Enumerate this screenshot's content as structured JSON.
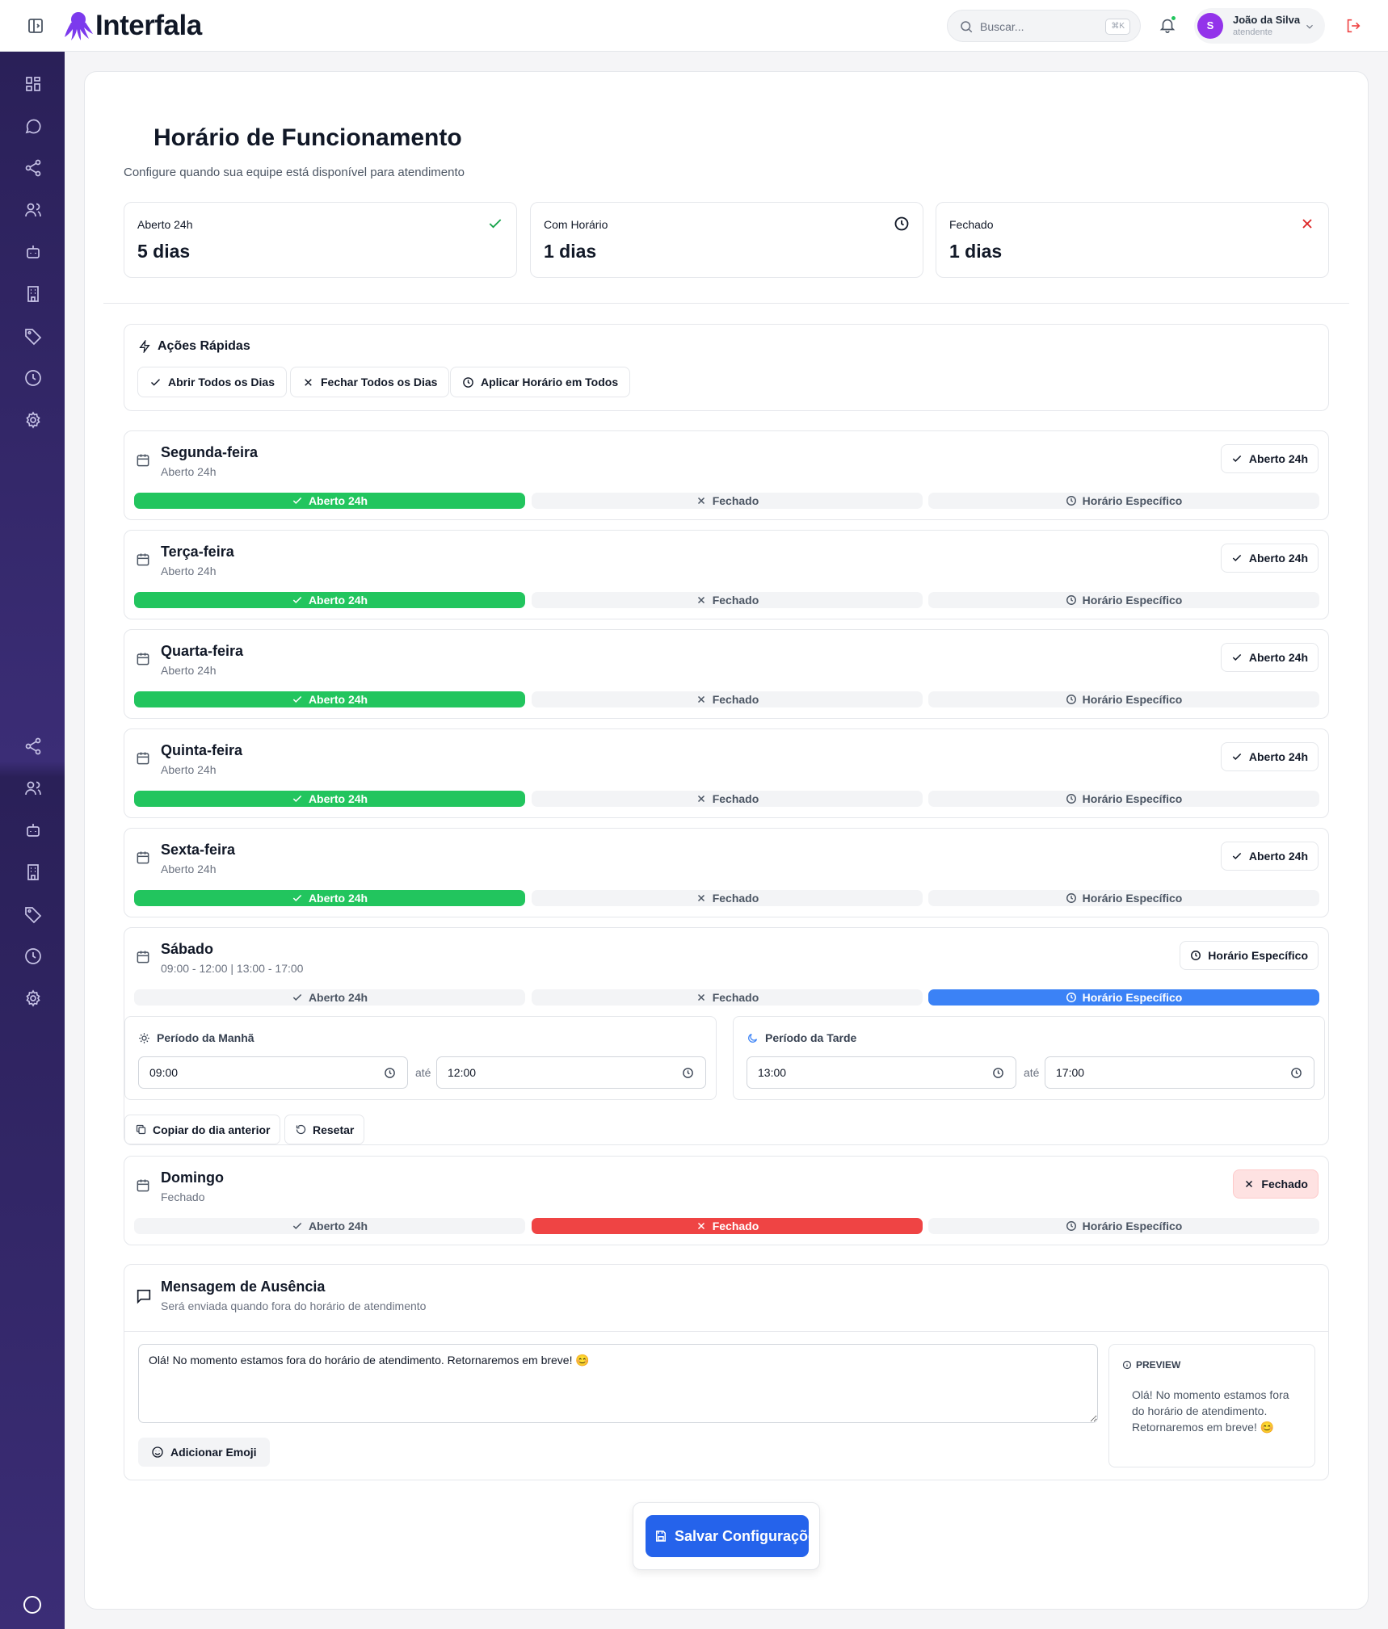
{
  "app": {
    "name": "Interfala"
  },
  "header": {
    "search_placeholder": "Buscar...",
    "search_shortcut": "⌘K",
    "user_initial": "S",
    "user_name": "João da Silva",
    "user_role": "atendente"
  },
  "colors": {
    "brand": "#7c3aed",
    "sidebar": "#2f2563",
    "green": "#22c55e",
    "red": "#ef4444",
    "blue": "#3b82f6",
    "save": "#2563eb"
  },
  "sidebar": {
    "icons": [
      "dashboard-icon",
      "chat-icon",
      "share-icon",
      "users-icon",
      "bot-icon",
      "building-icon",
      "tag-icon",
      "clock-icon",
      "settings-icon",
      "share-icon",
      "users-icon",
      "bot-icon",
      "building-icon",
      "tag-icon",
      "clock-icon",
      "settings-icon"
    ]
  },
  "page": {
    "title": "Horário de Funcionamento",
    "subtitle": "Configure quando sua equipe está disponível para atendimento"
  },
  "stats": [
    {
      "label": "Aberto 24h",
      "value": "5 dias",
      "icon": "check-icon"
    },
    {
      "label": "Com Horário",
      "value": "1 dias",
      "icon": "clock-icon"
    },
    {
      "label": "Fechado",
      "value": "1 dias",
      "icon": "x-icon"
    }
  ],
  "quick_actions": {
    "title": "Ações Rápidas",
    "buttons": [
      "Abrir Todos os Dias",
      "Fechar Todos os Dias",
      "Aplicar Horário em Todos"
    ]
  },
  "options": {
    "open": "Aberto 24h",
    "closed": "Fechado",
    "specific": "Horário Específico"
  },
  "days": [
    {
      "name": "Segunda-feira",
      "status": "Aberto 24h",
      "badge": "Aberto 24h",
      "mode": "open"
    },
    {
      "name": "Terça-feira",
      "status": "Aberto 24h",
      "badge": "Aberto 24h",
      "mode": "open"
    },
    {
      "name": "Quarta-feira",
      "status": "Aberto 24h",
      "badge": "Aberto 24h",
      "mode": "open"
    },
    {
      "name": "Quinta-feira",
      "status": "Aberto 24h",
      "badge": "Aberto 24h",
      "mode": "open"
    },
    {
      "name": "Sexta-feira",
      "status": "Aberto 24h",
      "badge": "Aberto 24h",
      "mode": "open"
    },
    {
      "name": "Sábado",
      "status": "09:00 - 12:00 | 13:00 - 17:00",
      "badge": "Horário Específico",
      "mode": "specific"
    },
    {
      "name": "Domingo",
      "status": "Fechado",
      "badge": "Fechado",
      "mode": "closed"
    }
  ],
  "saturday": {
    "morning": {
      "title": "Período da Manhã",
      "start": "09:00",
      "end": "12:00"
    },
    "afternoon": {
      "title": "Período da Tarde",
      "start": "13:00",
      "end": "17:00"
    },
    "until_label": "até",
    "copy_label": "Copiar do dia anterior",
    "reset_label": "Resetar"
  },
  "away": {
    "title": "Mensagem de Ausência",
    "subtitle": "Será enviada quando fora do horário de atendimento",
    "message": "Olá! No momento estamos fora do horário de atendimento. Retornaremos em breve! 😊",
    "emoji_label": "Adicionar Emoji",
    "preview_label": "PREVIEW",
    "preview_text": "Olá! No momento estamos fora do horário de atendimento. Retornaremos em breve! 😊"
  },
  "save_label": "Salvar Configurações"
}
